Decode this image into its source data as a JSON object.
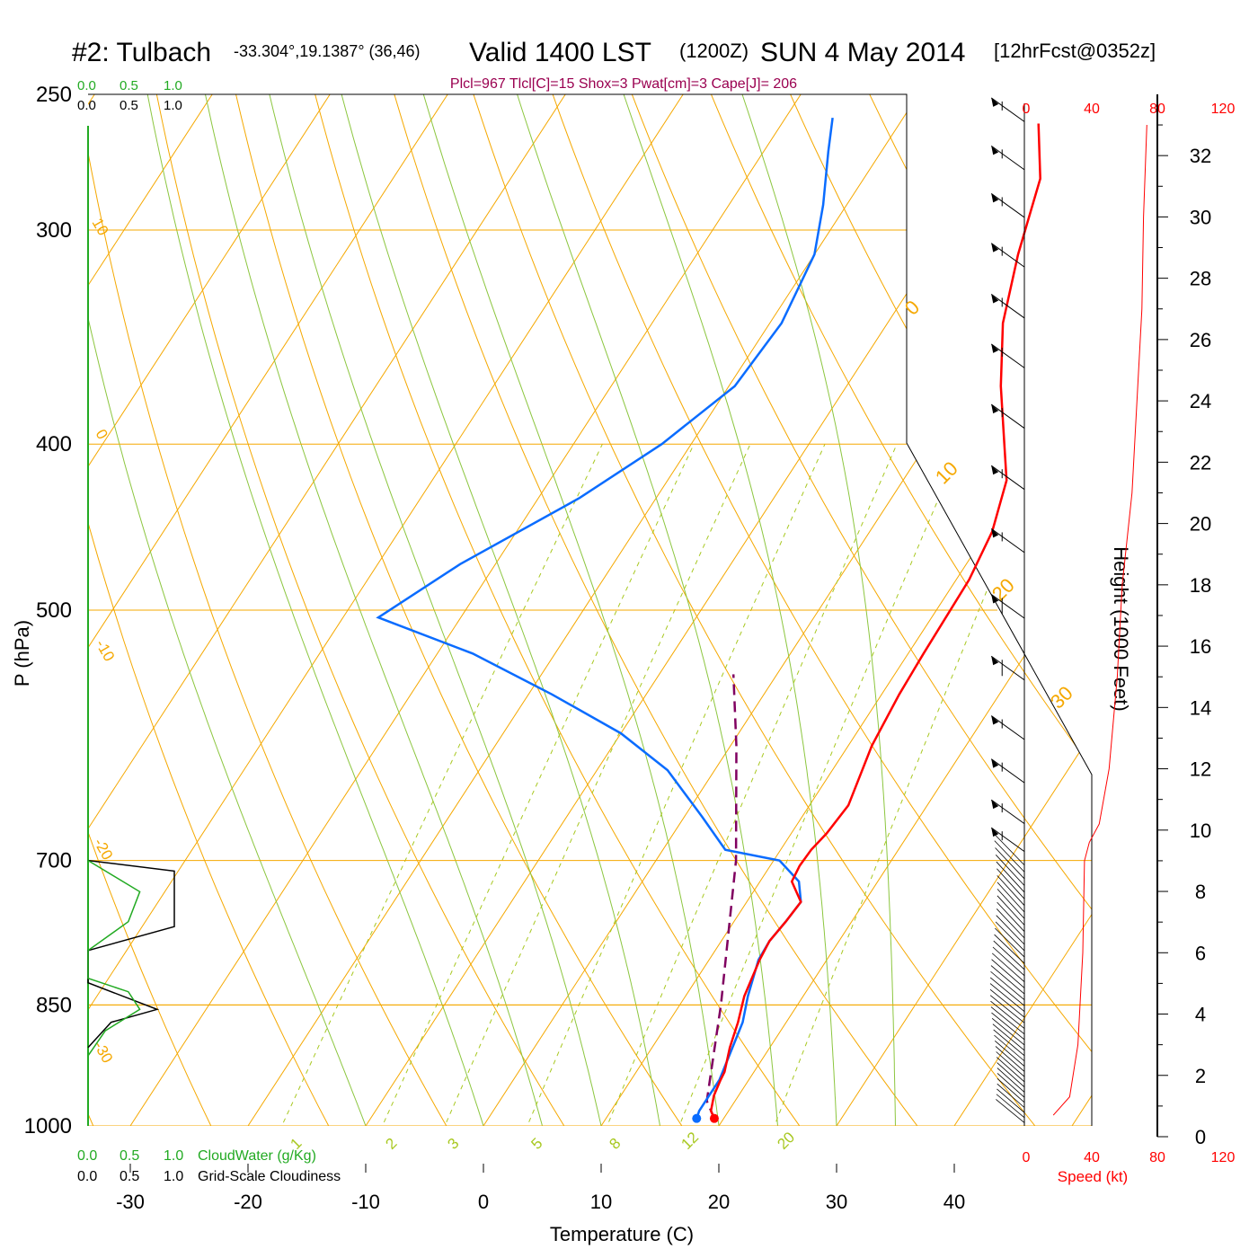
{
  "header": {
    "station": "#2: Tulbach",
    "coords": "-33.304°,19.1387° (36,46)",
    "valid": "Valid 1400 LST",
    "utc": "(1200Z)",
    "date": "SUN 4 May 2014",
    "forecast": "[12hrFcst@0352z]",
    "indices": "Plcl=967 Tlcl[C]=15 Shox=3 Pwat[cm]=3 Cape[J]= 206"
  },
  "colors": {
    "temperature": "#ff0000",
    "dewpoint": "#0a6cff",
    "parcel": "#800060",
    "isotherm": "#f5a800",
    "dry_adiabat": "#8cc63f",
    "mixing_ratio": "#a8c820",
    "cloud_water": "#22aa22",
    "wind_speed": "#ff0000"
  },
  "chart_data": {
    "type": "skew-t log-p sounding",
    "xlabel": "Temperature (C)",
    "ylabel": "P (hPa)",
    "right_axis_label": "Height (1000 Feet)",
    "x_ticks": [
      "-30",
      "-20",
      "-10",
      "0",
      "10",
      "20",
      "30",
      "40"
    ],
    "pressure_levels": [
      "250",
      "300",
      "400",
      "500",
      "700",
      "850",
      "1000"
    ],
    "height_ticks": [
      "0",
      "2",
      "4",
      "6",
      "8",
      "10",
      "12",
      "14",
      "16",
      "18",
      "20",
      "22",
      "24",
      "26",
      "28",
      "30",
      "32"
    ],
    "isotherm_labels": [
      "10",
      "0",
      "-10",
      "-20",
      "-30",
      "0",
      "10",
      "20",
      "30"
    ],
    "mixing_ratio_labels": [
      "1",
      "2",
      "3",
      "5",
      "8",
      "12",
      "20"
    ],
    "temperature_profile": [
      {
        "p": 990,
        "t": 19.2
      },
      {
        "p": 980,
        "t": 18.5
      },
      {
        "p": 960,
        "t": 17.9
      },
      {
        "p": 940,
        "t": 17.6
      },
      {
        "p": 930,
        "t": 17.5
      },
      {
        "p": 900,
        "t": 16.6
      },
      {
        "p": 870,
        "t": 15.9
      },
      {
        "p": 840,
        "t": 15.0
      },
      {
        "p": 800,
        "t": 14.3
      },
      {
        "p": 780,
        "t": 14.1
      },
      {
        "p": 760,
        "t": 14.4
      },
      {
        "p": 740,
        "t": 14.6
      },
      {
        "p": 720,
        "t": 12.7
      },
      {
        "p": 705,
        "t": 12.5
      },
      {
        "p": 690,
        "t": 12.6
      },
      {
        "p": 675,
        "t": 13.0
      },
      {
        "p": 650,
        "t": 13.3
      },
      {
        "p": 600,
        "t": 12.0
      },
      {
        "p": 560,
        "t": 11.5
      },
      {
        "p": 530,
        "t": 11.3
      },
      {
        "p": 480,
        "t": 11.1
      },
      {
        "p": 450,
        "t": 10.4
      },
      {
        "p": 420,
        "t": 8.8
      },
      {
        "p": 400,
        "t": 6.6
      },
      {
        "p": 370,
        "t": 3.1
      },
      {
        "p": 340,
        "t": -0.2
      },
      {
        "p": 310,
        "t": -2.7
      },
      {
        "p": 280,
        "t": -5.0
      },
      {
        "p": 260,
        "t": -8.2
      }
    ],
    "dewpoint_profile": [
      {
        "p": 990,
        "t": 17.7
      },
      {
        "p": 980,
        "t": 17.5
      },
      {
        "p": 960,
        "t": 17.5
      },
      {
        "p": 940,
        "t": 17.5
      },
      {
        "p": 910,
        "t": 17.0
      },
      {
        "p": 870,
        "t": 16.3
      },
      {
        "p": 840,
        "t": 15.3
      },
      {
        "p": 800,
        "t": 14.2
      },
      {
        "p": 780,
        "t": 14.1
      },
      {
        "p": 760,
        "t": 14.4
      },
      {
        "p": 740,
        "t": 14.6
      },
      {
        "p": 720,
        "t": 13.3
      },
      {
        "p": 700,
        "t": 10.5
      },
      {
        "p": 690,
        "t": 5.3
      },
      {
        "p": 660,
        "t": 1.5
      },
      {
        "p": 620,
        "t": -4.0
      },
      {
        "p": 590,
        "t": -10.0
      },
      {
        "p": 560,
        "t": -18.0
      },
      {
        "p": 530,
        "t": -27.0
      },
      {
        "p": 505,
        "t": -37.0
      },
      {
        "p": 470,
        "t": -33.0
      },
      {
        "p": 430,
        "t": -26.5
      },
      {
        "p": 400,
        "t": -22.5
      },
      {
        "p": 370,
        "t": -19.5
      },
      {
        "p": 340,
        "t": -19.0
      },
      {
        "p": 310,
        "t": -20.0
      },
      {
        "p": 290,
        "t": -22.0
      },
      {
        "p": 270,
        "t": -24.5
      },
      {
        "p": 258,
        "t": -26.0
      }
    ],
    "parcel_profile": [
      {
        "p": 990,
        "t": 19.2
      },
      {
        "p": 967,
        "t": 17.6
      },
      {
        "p": 850,
        "t": 13.5
      },
      {
        "p": 700,
        "t": 6.8
      },
      {
        "p": 600,
        "t": 0.5
      },
      {
        "p": 545,
        "t": -3.7
      }
    ],
    "cloud_water_profile": [
      {
        "p": 700,
        "v": 0.0
      },
      {
        "p": 730,
        "v": 0.45
      },
      {
        "p": 760,
        "v": 0.35
      },
      {
        "p": 790,
        "v": 0.0
      },
      {
        "p": 820,
        "v": 0.0
      },
      {
        "p": 835,
        "v": 0.35
      },
      {
        "p": 855,
        "v": 0.45
      },
      {
        "p": 880,
        "v": 0.15
      },
      {
        "p": 910,
        "v": 0.0
      }
    ],
    "cloudiness_profile": [
      {
        "p": 700,
        "v": 0.0
      },
      {
        "p": 710,
        "v": 0.75
      },
      {
        "p": 765,
        "v": 0.75
      },
      {
        "p": 790,
        "v": 0.0
      },
      {
        "p": 820,
        "v": 0.0
      },
      {
        "p": 825,
        "v": 0.0
      },
      {
        "p": 855,
        "v": 0.6
      },
      {
        "p": 870,
        "v": 0.2
      },
      {
        "p": 900,
        "v": 0.0
      }
    ],
    "wind_speed_profile": [
      {
        "h": 0.7,
        "v": 22
      },
      {
        "h": 1.3,
        "v": 32
      },
      {
        "h": 3,
        "v": 37
      },
      {
        "h": 6,
        "v": 40
      },
      {
        "h": 9,
        "v": 41
      },
      {
        "h": 9.6,
        "v": 44
      },
      {
        "h": 10.2,
        "v": 50
      },
      {
        "h": 12,
        "v": 56
      },
      {
        "h": 15,
        "v": 61
      },
      {
        "h": 18,
        "v": 64
      },
      {
        "h": 21,
        "v": 70
      },
      {
        "h": 24,
        "v": 73
      },
      {
        "h": 27,
        "v": 76
      },
      {
        "h": 30,
        "v": 77
      },
      {
        "h": 33,
        "v": 79
      }
    ],
    "wind_barbs_upper": [
      {
        "p": 255,
        "kt": 55
      },
      {
        "p": 272,
        "kt": 55
      },
      {
        "p": 290,
        "kt": 55
      },
      {
        "p": 310,
        "kt": 55
      },
      {
        "p": 332,
        "kt": 55
      },
      {
        "p": 355,
        "kt": 55
      },
      {
        "p": 385,
        "kt": 55
      },
      {
        "p": 418,
        "kt": 55
      },
      {
        "p": 455,
        "kt": 55
      },
      {
        "p": 497,
        "kt": 60
      },
      {
        "p": 540,
        "kt": 60
      },
      {
        "p": 585,
        "kt": 55
      },
      {
        "p": 620,
        "kt": 55
      },
      {
        "p": 655,
        "kt": 55
      },
      {
        "p": 680,
        "kt": 55
      }
    ],
    "wind_barbs_lower_count": 45,
    "speed_label": "Speed (kt)",
    "speed_ticks": [
      "0",
      "40",
      "80",
      "120"
    ],
    "cloud_ticks": [
      "0.0",
      "0.5",
      "1.0"
    ],
    "cloudwater_label": "CloudWater (g/Kg)",
    "cloudiness_label": "Grid-Scale Cloudiness"
  }
}
